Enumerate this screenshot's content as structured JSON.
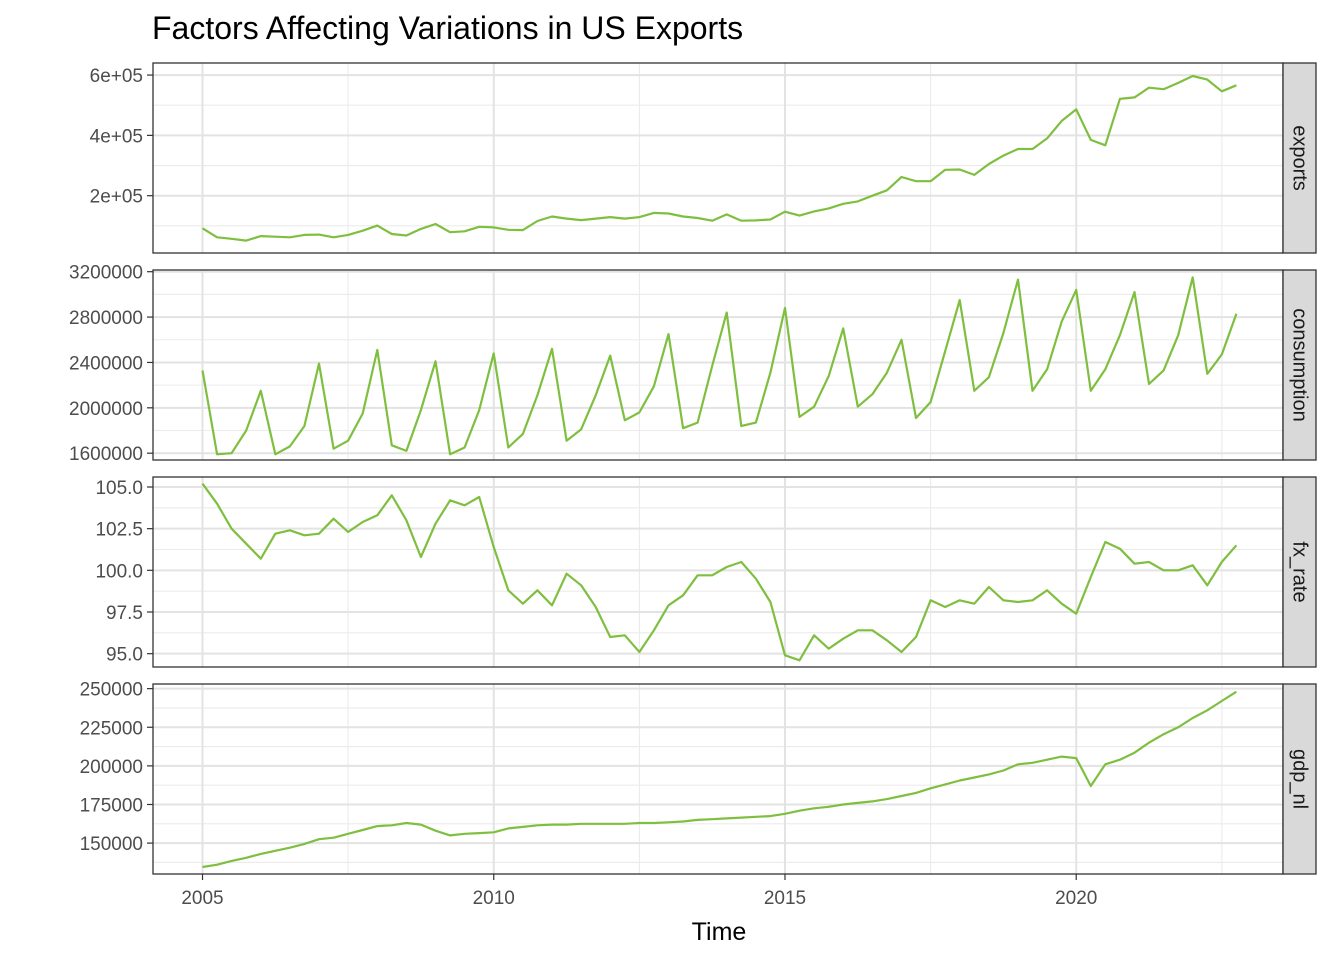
{
  "chart_data": {
    "type": "line",
    "title": "Factors Affecting Variations in US Exports",
    "xlabel": "Time",
    "x_ticks": [
      2005,
      2010,
      2015,
      2020
    ],
    "xlim": [
      2004.15,
      2023.55
    ],
    "line_color": "#7fbf3f",
    "grid": true,
    "x": [
      2005.0,
      2005.25,
      2005.5,
      2005.75,
      2006.0,
      2006.25,
      2006.5,
      2006.75,
      2007.0,
      2007.25,
      2007.5,
      2007.75,
      2008.0,
      2008.25,
      2008.5,
      2008.75,
      2009.0,
      2009.25,
      2009.5,
      2009.75,
      2010.0,
      2010.25,
      2010.5,
      2010.75,
      2011.0,
      2011.25,
      2011.5,
      2011.75,
      2012.0,
      2012.25,
      2012.5,
      2012.75,
      2013.0,
      2013.25,
      2013.5,
      2013.75,
      2014.0,
      2014.25,
      2014.5,
      2014.75,
      2015.0,
      2015.25,
      2015.5,
      2015.75,
      2016.0,
      2016.25,
      2016.5,
      2016.75,
      2017.0,
      2017.25,
      2017.5,
      2017.75,
      2018.0,
      2018.25,
      2018.5,
      2018.75,
      2019.0,
      2019.25,
      2019.5,
      2019.75,
      2020.0,
      2020.25,
      2020.5,
      2020.75,
      2021.0,
      2021.25,
      2021.5,
      2021.75,
      2022.0,
      2022.25,
      2022.5,
      2022.75
    ],
    "series": [
      {
        "name": "exports",
        "ylim": [
          10000,
          640000
        ],
        "ticks": [
          200000,
          400000,
          600000
        ],
        "tick_labels": [
          "2e+05",
          "4e+05",
          "6e+05"
        ],
        "values": [
          92000,
          62000,
          57000,
          51000,
          66000,
          64000,
          62000,
          70000,
          71000,
          62000,
          70000,
          84000,
          101000,
          73000,
          68000,
          90000,
          106000,
          79000,
          82000,
          97000,
          95000,
          87000,
          86000,
          116000,
          131000,
          124000,
          119000,
          124000,
          129000,
          124000,
          129000,
          143000,
          141000,
          131000,
          126000,
          117000,
          138000,
          117000,
          118000,
          121000,
          147000,
          134000,
          148000,
          158000,
          173000,
          181000,
          200000,
          218000,
          262000,
          248000,
          248000,
          286000,
          287000,
          269000,
          305000,
          333000,
          355000,
          355000,
          390000,
          448000,
          486000,
          385000,
          367000,
          521000,
          526000,
          558000,
          553000,
          574000,
          597000,
          585000,
          546000,
          566000
        ]
      },
      {
        "name": "consumption",
        "ylim": [
          1540000,
          3215000
        ],
        "ticks": [
          1600000,
          2000000,
          2400000,
          2800000,
          3200000
        ],
        "tick_labels": [
          "1600000",
          "2000000",
          "2400000",
          "2800000",
          "3200000"
        ],
        "values": [
          2330000,
          1590000,
          1600000,
          1800000,
          2150000,
          1590000,
          1660000,
          1840000,
          2390000,
          1640000,
          1710000,
          1950000,
          2510000,
          1670000,
          1620000,
          1980000,
          2410000,
          1590000,
          1650000,
          1980000,
          2480000,
          1650000,
          1770000,
          2110000,
          2520000,
          1710000,
          1810000,
          2110000,
          2460000,
          1890000,
          1960000,
          2190000,
          2650000,
          1820000,
          1870000,
          2370000,
          2840000,
          1840000,
          1870000,
          2310000,
          2880000,
          1920000,
          2010000,
          2280000,
          2700000,
          2010000,
          2120000,
          2310000,
          2600000,
          1910000,
          2050000,
          2500000,
          2950000,
          2150000,
          2270000,
          2660000,
          3130000,
          2150000,
          2340000,
          2760000,
          3040000,
          2150000,
          2340000,
          2640000,
          3020000,
          2210000,
          2330000,
          2640000,
          3150000,
          2300000,
          2470000,
          2830000
        ]
      },
      {
        "name": "fx_rate",
        "ylim": [
          94.2,
          105.6
        ],
        "ticks": [
          95.0,
          97.5,
          100.0,
          102.5,
          105.0
        ],
        "tick_labels": [
          "95.0",
          "97.5",
          "100.0",
          "102.5",
          "105.0"
        ],
        "values": [
          105.2,
          104.0,
          102.5,
          101.6,
          100.7,
          102.2,
          102.4,
          102.1,
          102.2,
          103.1,
          102.3,
          102.9,
          103.3,
          104.5,
          103.0,
          100.8,
          102.8,
          104.2,
          103.9,
          104.4,
          101.4,
          98.8,
          98.0,
          98.8,
          97.9,
          99.8,
          99.1,
          97.8,
          96.0,
          96.1,
          95.1,
          96.4,
          97.9,
          98.5,
          99.7,
          99.7,
          100.2,
          100.5,
          99.5,
          98.1,
          94.9,
          94.6,
          96.1,
          95.3,
          95.9,
          96.4,
          96.4,
          95.8,
          95.1,
          96.0,
          98.2,
          97.8,
          98.2,
          98.0,
          99.0,
          98.2,
          98.1,
          98.2,
          98.8,
          98.0,
          97.4,
          99.6,
          101.7,
          101.3,
          100.4,
          100.5,
          100.0,
          100.0,
          100.3,
          99.1,
          100.5,
          101.5
        ]
      },
      {
        "name": "gdp_nl",
        "ylim": [
          130000,
          253000
        ],
        "ticks": [
          150000,
          175000,
          200000,
          225000,
          250000
        ],
        "tick_labels": [
          "150000",
          "175000",
          "200000",
          "225000",
          "250000"
        ],
        "values": [
          134500,
          136000,
          138500,
          140500,
          143000,
          145000,
          147000,
          149500,
          152500,
          153500,
          156000,
          158500,
          161000,
          161500,
          163000,
          162000,
          158000,
          155000,
          156000,
          156500,
          157000,
          159500,
          160500,
          161500,
          162000,
          162000,
          162500,
          162500,
          162500,
          162500,
          163000,
          163000,
          163500,
          164000,
          165000,
          165500,
          166000,
          166500,
          167000,
          167500,
          169000,
          171000,
          172500,
          173500,
          175000,
          176000,
          177000,
          178500,
          180500,
          182500,
          185500,
          188000,
          190500,
          192500,
          194500,
          197000,
          201000,
          202000,
          204000,
          206000,
          205000,
          187000,
          201000,
          204000,
          208500,
          215000,
          220500,
          225000,
          231000,
          236000,
          242000,
          248000
        ]
      }
    ]
  }
}
